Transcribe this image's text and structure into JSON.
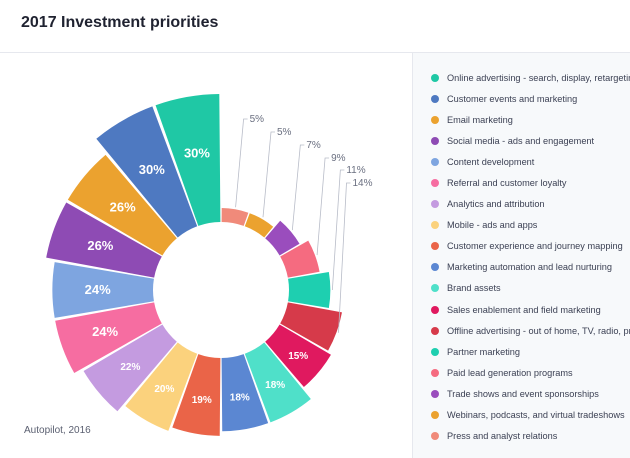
{
  "title": "2017 Investment priorities",
  "source": "Autopilot, 2016",
  "colors": {
    "legend_bg": "#f7f9fb",
    "title": "#1f2230"
  },
  "chart_data": {
    "type": "pie",
    "variant": "donut with radius proportional to value",
    "series": [
      {
        "label": "Online advertising - search, display, retargeting",
        "value": 30,
        "value_label": "30%",
        "color": "#1fc8a5"
      },
      {
        "label": "Customer events and marketing",
        "value": 30,
        "value_label": "30%",
        "color": "#4e79c1"
      },
      {
        "label": "Email marketing",
        "value": 26,
        "value_label": "26%",
        "color": "#eba22f"
      },
      {
        "label": "Social media - ads and engagement",
        "value": 26,
        "value_label": "26%",
        "color": "#8e4bb4"
      },
      {
        "label": "Content development",
        "value": 24,
        "value_label": "24%",
        "color": "#7ea5e0"
      },
      {
        "label": "Referral and customer loyalty",
        "value": 24,
        "value_label": "24%",
        "color": "#f66da1"
      },
      {
        "label": "Analytics and attribution",
        "value": 22,
        "value_label": "22%",
        "color": "#c49be0"
      },
      {
        "label": "Mobile - ads and apps",
        "value": 20,
        "value_label": "20%",
        "color": "#fbd27d"
      },
      {
        "label": "Customer experience and journey mapping",
        "value": 19,
        "value_label": "19%",
        "color": "#ea6448"
      },
      {
        "label": "Marketing automation and lead nurturing",
        "value": 18,
        "value_label": "18%",
        "color": "#5b87d2"
      },
      {
        "label": "Brand assets",
        "value": 18,
        "value_label": "18%",
        "color": "#4fe0c9"
      },
      {
        "label": "Sales enablement and field marketing",
        "value": 15,
        "value_label": "15%",
        "color": "#e0195f"
      },
      {
        "label": "Offline advertising - out of home, TV, radio, print",
        "value": 14,
        "value_label": "14%",
        "color": "#d63a4a"
      },
      {
        "label": "Partner marketing",
        "value": 11,
        "value_label": "11%",
        "color": "#1ecfb0"
      },
      {
        "label": "Paid lead generation programs",
        "value": 9,
        "value_label": "9%",
        "color": "#f56b80"
      },
      {
        "label": "Trade shows and event sponsorships",
        "value": 7,
        "value_label": "7%",
        "color": "#9a4dbd"
      },
      {
        "label": "Webinars, podcasts, and virtual tradeshows",
        "value": 5,
        "value_label": "5%",
        "color": "#eba22f"
      },
      {
        "label": "Press and analyst relations",
        "value": 5,
        "value_label": "5%",
        "color": "#f08a7a"
      }
    ],
    "legend_position": "right"
  }
}
